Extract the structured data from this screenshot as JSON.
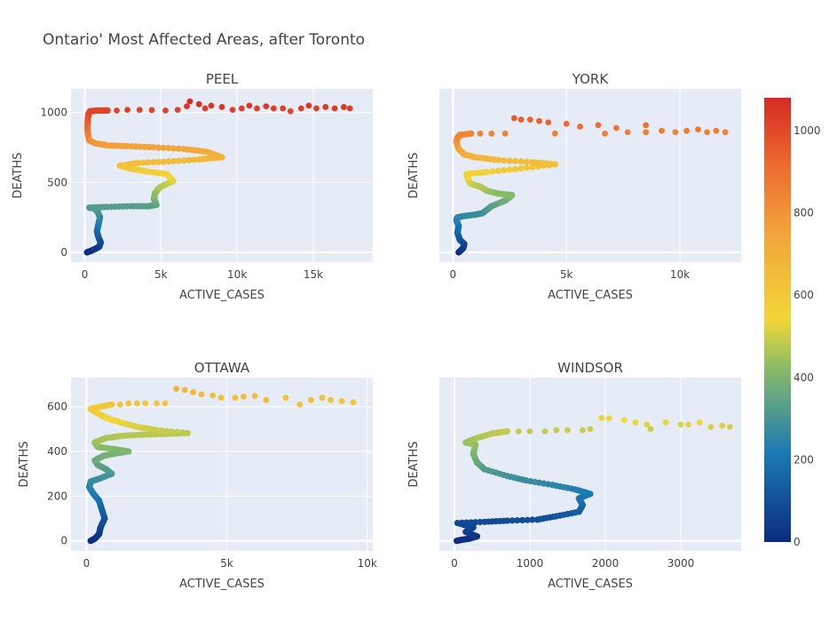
{
  "title": "Ontario' Most Affected Areas, after Toronto",
  "chart_data": [
    {
      "type": "scatter",
      "title": "PEEL",
      "xlabel": "ACTIVE_CASES",
      "ylabel": "DEATHS",
      "xlim": [
        -900,
        18900
      ],
      "ylim": [
        -70,
        1170
      ],
      "xticks": [
        {
          "v": 0,
          "t": "0"
        },
        {
          "v": 5000,
          "t": "5k"
        },
        {
          "v": 10000,
          "t": "10k"
        },
        {
          "v": 15000,
          "t": "15k"
        }
      ],
      "yticks": [
        {
          "v": 0,
          "t": "0"
        },
        {
          "v": 500,
          "t": "500"
        },
        {
          "v": 1000,
          "t": "1000"
        }
      ],
      "path": [
        [
          150,
          0
        ],
        [
          400,
          10
        ],
        [
          700,
          25
        ],
        [
          950,
          40
        ],
        [
          1050,
          70
        ],
        [
          900,
          110
        ],
        [
          800,
          150
        ],
        [
          900,
          200
        ],
        [
          1000,
          250
        ],
        [
          850,
          290
        ],
        [
          600,
          315
        ],
        [
          300,
          320
        ],
        [
          1500,
          325
        ],
        [
          3000,
          330
        ],
        [
          4200,
          330
        ],
        [
          4700,
          340
        ],
        [
          4550,
          380
        ],
        [
          4600,
          420
        ],
        [
          4800,
          450
        ],
        [
          5000,
          470
        ],
        [
          5800,
          510
        ],
        [
          5400,
          560
        ],
        [
          4000,
          580
        ],
        [
          3000,
          600
        ],
        [
          2300,
          620
        ],
        [
          3500,
          640
        ],
        [
          5500,
          650
        ],
        [
          7500,
          665
        ],
        [
          9000,
          680
        ],
        [
          8000,
          720
        ],
        [
          6500,
          740
        ],
        [
          4500,
          752
        ],
        [
          2800,
          760
        ],
        [
          1500,
          765
        ],
        [
          700,
          780
        ],
        [
          300,
          800
        ],
        [
          200,
          850
        ],
        [
          180,
          900
        ],
        [
          200,
          950
        ],
        [
          250,
          990
        ],
        [
          350,
          1010
        ],
        [
          900,
          1015
        ],
        [
          1500,
          1015
        ]
      ],
      "sparse": [
        [
          2100,
          1015
        ],
        [
          2800,
          1020
        ],
        [
          3600,
          1020
        ],
        [
          4400,
          1018
        ],
        [
          5300,
          1015
        ],
        [
          6100,
          1020
        ],
        [
          6700,
          1045
        ],
        [
          6900,
          1080
        ],
        [
          7500,
          1060
        ],
        [
          7900,
          1030
        ],
        [
          8300,
          1050
        ],
        [
          9000,
          1040
        ],
        [
          9700,
          1020
        ],
        [
          10300,
          1030
        ],
        [
          10800,
          1050
        ],
        [
          11300,
          1030
        ],
        [
          11900,
          1045
        ],
        [
          12400,
          1030
        ],
        [
          13000,
          1030
        ],
        [
          13500,
          1010
        ],
        [
          14200,
          1030
        ],
        [
          14700,
          1050
        ],
        [
          15200,
          1030
        ],
        [
          15800,
          1040
        ],
        [
          16400,
          1030
        ],
        [
          17000,
          1040
        ],
        [
          17400,
          1030
        ]
      ]
    },
    {
      "type": "scatter",
      "title": "YORK",
      "xlabel": "ACTIVE_CASES",
      "ylabel": "DEATHS",
      "xlim": [
        -600,
        12700
      ],
      "ylim": [
        -70,
        1170
      ],
      "xticks": [
        {
          "v": 0,
          "t": "0"
        },
        {
          "v": 5000,
          "t": "5k"
        },
        {
          "v": 10000,
          "t": "10k"
        }
      ],
      "yticks": [],
      "path": [
        [
          250,
          0
        ],
        [
          350,
          15
        ],
        [
          450,
          30
        ],
        [
          500,
          60
        ],
        [
          300,
          90
        ],
        [
          200,
          140
        ],
        [
          250,
          190
        ],
        [
          150,
          230
        ],
        [
          200,
          250
        ],
        [
          500,
          260
        ],
        [
          1000,
          270
        ],
        [
          1300,
          280
        ],
        [
          1700,
          330
        ],
        [
          2300,
          370
        ],
        [
          2500,
          395
        ],
        [
          2600,
          410
        ],
        [
          2000,
          420
        ],
        [
          1500,
          440
        ],
        [
          1200,
          470
        ],
        [
          800,
          490
        ],
        [
          700,
          510
        ],
        [
          600,
          560
        ],
        [
          1500,
          575
        ],
        [
          3000,
          600
        ],
        [
          4500,
          630
        ],
        [
          3500,
          645
        ],
        [
          2000,
          660
        ],
        [
          1000,
          680
        ],
        [
          500,
          700
        ],
        [
          250,
          740
        ],
        [
          150,
          790
        ],
        [
          200,
          820
        ],
        [
          300,
          840
        ],
        [
          800,
          850
        ]
      ],
      "sparse": [
        [
          1200,
          850
        ],
        [
          1700,
          850
        ],
        [
          2300,
          850
        ],
        [
          2700,
          960
        ],
        [
          3000,
          950
        ],
        [
          3400,
          950
        ],
        [
          3800,
          940
        ],
        [
          4200,
          930
        ],
        [
          4500,
          850
        ],
        [
          5000,
          920
        ],
        [
          5600,
          900
        ],
        [
          6400,
          910
        ],
        [
          6700,
          850
        ],
        [
          7200,
          890
        ],
        [
          7700,
          860
        ],
        [
          8500,
          910
        ],
        [
          8500,
          860
        ],
        [
          9200,
          870
        ],
        [
          9800,
          860
        ],
        [
          10300,
          870
        ],
        [
          10800,
          880
        ],
        [
          11200,
          860
        ],
        [
          11600,
          870
        ],
        [
          12000,
          860
        ]
      ]
    },
    {
      "type": "scatter",
      "title": "OTTAWA",
      "xlabel": "ACTIVE_CASES",
      "ylabel": "DEATHS",
      "xlim": [
        -550,
        10200
      ],
      "ylim": [
        -45,
        730
      ],
      "xticks": [
        {
          "v": 0,
          "t": "0"
        },
        {
          "v": 5000,
          "t": "5k"
        },
        {
          "v": 10000,
          "t": "10k"
        }
      ],
      "yticks": [
        {
          "v": 0,
          "t": "0"
        },
        {
          "v": 200,
          "t": "200"
        },
        {
          "v": 400,
          "t": "400"
        },
        {
          "v": 600,
          "t": "600"
        }
      ],
      "path": [
        [
          150,
          0
        ],
        [
          300,
          10
        ],
        [
          450,
          30
        ],
        [
          500,
          60
        ],
        [
          650,
          100
        ],
        [
          550,
          140
        ],
        [
          450,
          180
        ],
        [
          250,
          210
        ],
        [
          100,
          240
        ],
        [
          150,
          265
        ],
        [
          500,
          280
        ],
        [
          900,
          300
        ],
        [
          700,
          320
        ],
        [
          400,
          340
        ],
        [
          300,
          360
        ],
        [
          600,
          380
        ],
        [
          1000,
          390
        ],
        [
          1500,
          400
        ],
        [
          1000,
          410
        ],
        [
          400,
          420
        ],
        [
          300,
          440
        ],
        [
          700,
          460
        ],
        [
          1300,
          470
        ],
        [
          2000,
          475
        ],
        [
          2800,
          478
        ],
        [
          3600,
          482
        ],
        [
          2500,
          495
        ],
        [
          1800,
          510
        ],
        [
          1200,
          530
        ],
        [
          700,
          550
        ],
        [
          400,
          570
        ],
        [
          150,
          590
        ],
        [
          500,
          600
        ],
        [
          900,
          610
        ]
      ],
      "sparse": [
        [
          1200,
          610
        ],
        [
          1500,
          615
        ],
        [
          1800,
          615
        ],
        [
          2100,
          615
        ],
        [
          2500,
          615
        ],
        [
          2800,
          615
        ],
        [
          3200,
          680
        ],
        [
          3500,
          675
        ],
        [
          3800,
          665
        ],
        [
          4100,
          655
        ],
        [
          4500,
          650
        ],
        [
          4800,
          640
        ],
        [
          5300,
          640
        ],
        [
          5600,
          645
        ],
        [
          6000,
          648
        ],
        [
          6400,
          630
        ],
        [
          7100,
          640
        ],
        [
          7600,
          610
        ],
        [
          8000,
          630
        ],
        [
          8400,
          640
        ],
        [
          8700,
          630
        ],
        [
          9100,
          625
        ],
        [
          9500,
          620
        ]
      ]
    },
    {
      "type": "scatter",
      "title": "WINDSOR",
      "xlabel": "ACTIVE_CASES",
      "ylabel": "DEATHS",
      "xlim": [
        -200,
        3800
      ],
      "ylim": [
        -45,
        730
      ],
      "xticks": [
        {
          "v": 0,
          "t": "0"
        },
        {
          "v": 1000,
          "t": "1000"
        },
        {
          "v": 2000,
          "t": "2000"
        },
        {
          "v": 3000,
          "t": "3000"
        }
      ],
      "yticks": [],
      "path": [
        [
          30,
          0
        ],
        [
          100,
          5
        ],
        [
          200,
          10
        ],
        [
          300,
          20
        ],
        [
          150,
          40
        ],
        [
          250,
          60
        ],
        [
          40,
          80
        ],
        [
          400,
          85
        ],
        [
          700,
          90
        ],
        [
          1100,
          95
        ],
        [
          1350,
          110
        ],
        [
          1650,
          130
        ],
        [
          1700,
          160
        ],
        [
          1650,
          190
        ],
        [
          1800,
          210
        ],
        [
          1600,
          230
        ],
        [
          1300,
          250
        ],
        [
          950,
          270
        ],
        [
          700,
          290
        ],
        [
          400,
          320
        ],
        [
          300,
          350
        ],
        [
          250,
          390
        ],
        [
          280,
          430
        ],
        [
          150,
          440
        ],
        [
          300,
          460
        ],
        [
          500,
          480
        ],
        [
          700,
          490
        ]
      ],
      "sparse": [
        [
          850,
          490
        ],
        [
          1000,
          490
        ],
        [
          1200,
          490
        ],
        [
          1350,
          495
        ],
        [
          1500,
          495
        ],
        [
          1700,
          495
        ],
        [
          1800,
          500
        ],
        [
          1950,
          550
        ],
        [
          2050,
          548
        ],
        [
          2250,
          540
        ],
        [
          2400,
          530
        ],
        [
          2550,
          520
        ],
        [
          2600,
          500
        ],
        [
          2800,
          530
        ],
        [
          3000,
          520
        ],
        [
          3100,
          520
        ],
        [
          3250,
          530
        ],
        [
          3400,
          510
        ],
        [
          3550,
          515
        ],
        [
          3650,
          510
        ]
      ]
    }
  ],
  "colorbar": {
    "min": 0,
    "max": 1080,
    "ticks": [
      {
        "v": 0,
        "t": "0"
      },
      {
        "v": 200,
        "t": "200"
      },
      {
        "v": 400,
        "t": "400"
      },
      {
        "v": 600,
        "t": "600"
      },
      {
        "v": 800,
        "t": "800"
      },
      {
        "v": 1000,
        "t": "1000"
      }
    ],
    "colorscale": [
      [
        0,
        "#0d2b80"
      ],
      [
        0.2,
        "#1a7ab5"
      ],
      [
        0.4,
        "#8fbf63"
      ],
      [
        0.5,
        "#f2d738"
      ],
      [
        0.7,
        "#f2a33b"
      ],
      [
        0.85,
        "#ec6b2f"
      ],
      [
        1,
        "#d62a24"
      ]
    ]
  },
  "colors": {
    "plot_bg": "#e5ecf6",
    "grid": "#ffffff"
  }
}
